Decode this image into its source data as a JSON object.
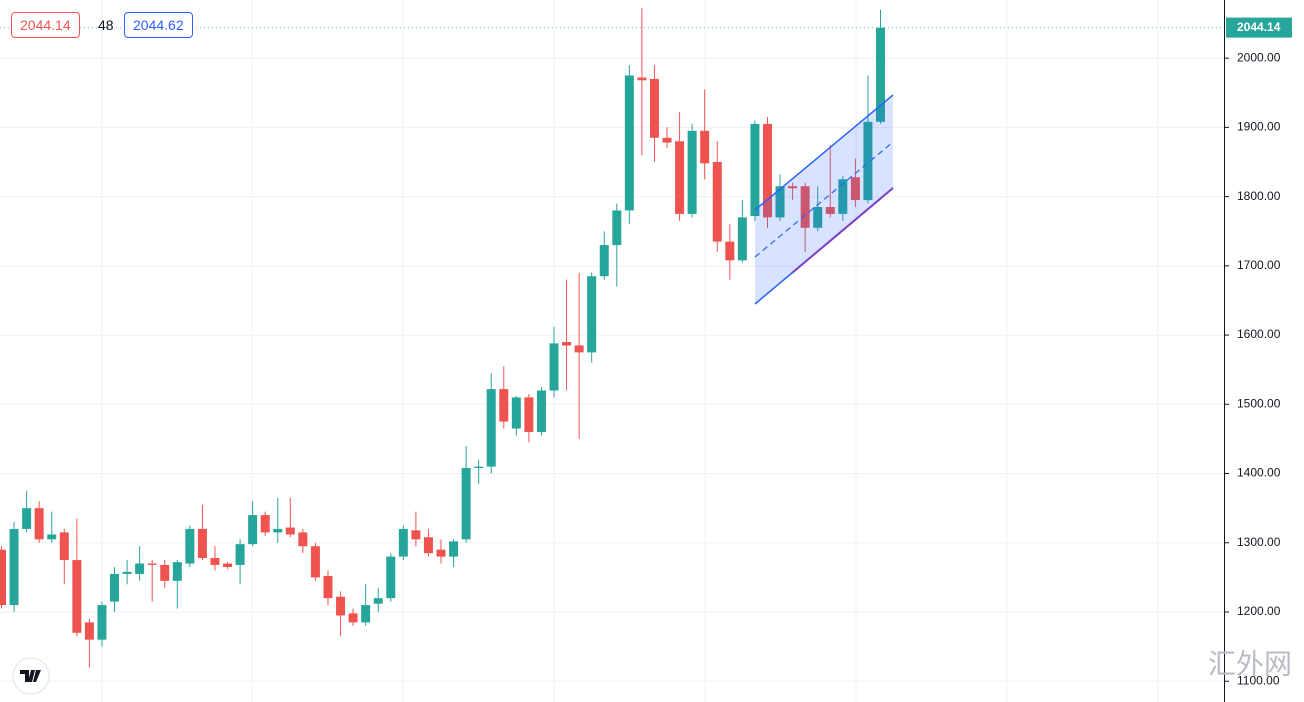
{
  "chart_data": {
    "type": "candlestick",
    "open": [
      1290,
      1210,
      1320,
      1350,
      1305,
      1315,
      1275,
      1185,
      1160,
      1215,
      1255,
      1255,
      1270,
      1268,
      1245,
      1270,
      1320,
      1278,
      1270,
      1268,
      1298,
      1340,
      1315,
      1322,
      1315,
      1295,
      1252,
      1222,
      1198,
      1185,
      1212,
      1220,
      1280,
      1318,
      1308,
      1290,
      1280,
      1305,
      1408,
      1410,
      1522,
      1465,
      1510,
      1460,
      1520,
      1590,
      1585,
      1575,
      1685,
      1730,
      1780,
      1972,
      1970,
      1885,
      1880,
      1775,
      1895,
      1850,
      1735,
      1708,
      1772,
      1905,
      1770,
      1815,
      1815,
      1755,
      1785,
      1775,
      1828,
      1795,
      1908
    ],
    "high": [
      1295,
      1330,
      1375,
      1360,
      1345,
      1320,
      1335,
      1190,
      1215,
      1265,
      1275,
      1295,
      1275,
      1275,
      1275,
      1325,
      1355,
      1295,
      1272,
      1305,
      1360,
      1345,
      1365,
      1365,
      1320,
      1300,
      1260,
      1230,
      1205,
      1240,
      1235,
      1285,
      1325,
      1345,
      1320,
      1305,
      1305,
      1440,
      1420,
      1545,
      1555,
      1512,
      1515,
      1525,
      1612,
      1680,
      1690,
      1690,
      1750,
      1790,
      1990,
      2072,
      1990,
      1900,
      1922,
      1905,
      1955,
      1880,
      1760,
      1795,
      1910,
      1915,
      1832,
      1820,
      1820,
      1815,
      1875,
      1830,
      1855,
      1975,
      2070
    ],
    "low": [
      1205,
      1200,
      1315,
      1300,
      1300,
      1240,
      1165,
      1120,
      1150,
      1200,
      1240,
      1245,
      1215,
      1235,
      1205,
      1265,
      1275,
      1260,
      1262,
      1240,
      1295,
      1310,
      1300,
      1308,
      1285,
      1245,
      1210,
      1165,
      1180,
      1180,
      1200,
      1215,
      1275,
      1295,
      1280,
      1270,
      1265,
      1300,
      1385,
      1400,
      1465,
      1455,
      1445,
      1455,
      1510,
      1520,
      1450,
      1560,
      1680,
      1670,
      1760,
      1860,
      1850,
      1870,
      1765,
      1770,
      1825,
      1720,
      1680,
      1705,
      1765,
      1755,
      1765,
      1795,
      1720,
      1750,
      1770,
      1765,
      1785,
      1790,
      1905
    ],
    "close": [
      1210,
      1320,
      1350,
      1305,
      1312,
      1275,
      1170,
      1160,
      1210,
      1255,
      1258,
      1270,
      1268,
      1245,
      1272,
      1320,
      1278,
      1268,
      1265,
      1298,
      1340,
      1315,
      1320,
      1312,
      1295,
      1250,
      1220,
      1195,
      1185,
      1210,
      1220,
      1280,
      1320,
      1305,
      1285,
      1280,
      1302,
      1408,
      1410,
      1522,
      1475,
      1510,
      1460,
      1520,
      1588,
      1585,
      1575,
      1685,
      1730,
      1780,
      1975,
      1968,
      1885,
      1878,
      1775,
      1895,
      1848,
      1735,
      1708,
      1770,
      1905,
      1770,
      1815,
      1812,
      1755,
      1785,
      1775,
      1825,
      1795,
      1908,
      2044.14
    ],
    "up_color": "#26a69a",
    "down_color": "#ef5350",
    "ylim": [
      1070,
      2084
    ],
    "yticks": [
      {
        "value": 1100,
        "label": "1100.00"
      },
      {
        "value": 1200,
        "label": "1200.00"
      },
      {
        "value": 1300,
        "label": "1300.00"
      },
      {
        "value": 1400,
        "label": "1400.00"
      },
      {
        "value": 1500,
        "label": "1500.00"
      },
      {
        "value": 1600,
        "label": "1600.00"
      },
      {
        "value": 1700,
        "label": "1700.00"
      },
      {
        "value": 1800,
        "label": "1800.00"
      },
      {
        "value": 1900,
        "label": "1900.00"
      },
      {
        "value": 2000,
        "label": "2000.00"
      }
    ],
    "grid": true,
    "last_price": 2044.14,
    "bid": 2044.14,
    "spread": 48,
    "ask": 2044.62,
    "watermark": "汇外网"
  }
}
